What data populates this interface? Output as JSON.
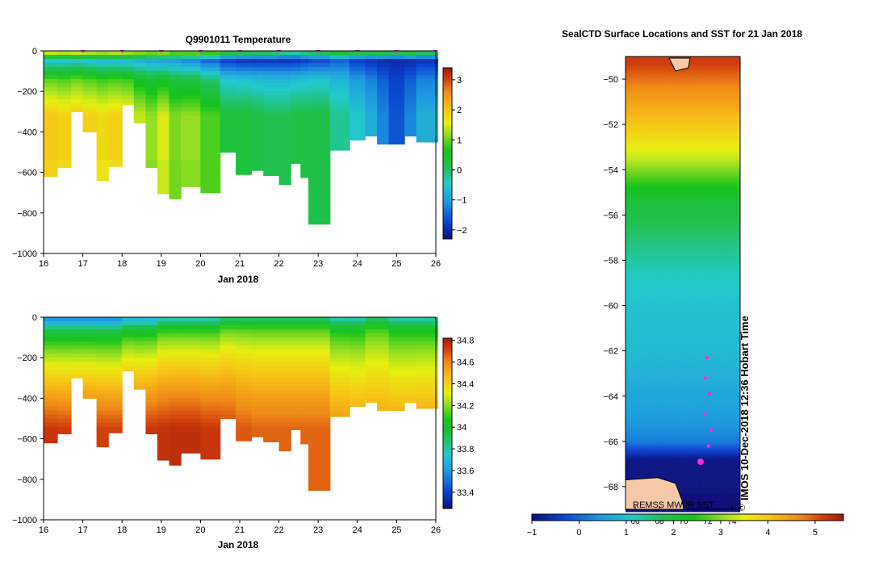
{
  "chart_data": [
    {
      "type": "heatmap",
      "title": "Q9901011  Temperature",
      "xlabel": "Jan 2018",
      "ylabel": "",
      "xlim": [
        16,
        26
      ],
      "ylim": [
        -1000,
        0
      ],
      "x_ticks": [
        "16",
        "17",
        "18",
        "19",
        "20",
        "21",
        "22",
        "23",
        "24",
        "25",
        "26"
      ],
      "y_ticks": [
        "0",
        "−200",
        "−400",
        "−600",
        "−800",
        "−1000"
      ],
      "colorbar": {
        "min": -2.3,
        "max": 3.4,
        "ticks": [
          "3",
          "2",
          "1",
          "0",
          "−1",
          "−2"
        ]
      },
      "profile_days": [
        16.0,
        16.35,
        16.7,
        17.0,
        17.35,
        17.65,
        18.0,
        18.3,
        18.6,
        18.9,
        19.2,
        19.5,
        20.0,
        20.5,
        20.9,
        21.3,
        21.6,
        22.0,
        22.3,
        22.55,
        22.75,
        23.3,
        23.8,
        24.2,
        24.5,
        24.8,
        25.2,
        25.5,
        26.05
      ],
      "profile_max_depth_m": [
        620,
        575,
        300,
        400,
        640,
        570,
        265,
        355,
        575,
        705,
        730,
        670,
        700,
        500,
        610,
        590,
        615,
        660,
        555,
        625,
        855,
        490,
        440,
        420,
        460,
        460,
        420,
        450,
        450
      ],
      "surface_temp_c": [
        1.4,
        1.3,
        1.4,
        1.3,
        1.2,
        1.3,
        1.2,
        1.1,
        1.0,
        1.1,
        0.9,
        0.9,
        0.8,
        0.2,
        0.1,
        0.0,
        0.0,
        -0.2,
        -0.3,
        -0.1,
        0.0,
        0.4,
        0.2,
        0.1,
        0.2,
        0.1,
        0.3,
        0.0,
        0.1
      ],
      "deep_temp_c": [
        2.0,
        1.9,
        2.0,
        1.9,
        1.8,
        1.9,
        1.8,
        1.4,
        1.2,
        1.5,
        1.1,
        1.2,
        0.9,
        0.3,
        0.3,
        0.2,
        0.1,
        0.1,
        0.2,
        0.2,
        0.2,
        -0.2,
        -0.5,
        -0.8,
        -1.2,
        -1.6,
        -1.2,
        -0.8,
        -0.5
      ],
      "min_temp_c": [
        -0.6,
        -0.6,
        -0.5,
        -0.6,
        -0.7,
        -0.7,
        -0.7,
        -0.8,
        -0.9,
        -1.0,
        -1.0,
        -1.2,
        -1.5,
        -1.8,
        -1.9,
        -1.9,
        -1.9,
        -1.9,
        -1.9,
        -1.8,
        -1.7,
        -1.5,
        -1.8,
        -1.9,
        -2.0,
        -2.0,
        -2.0,
        -1.9,
        -1.8
      ],
      "color_scale": [
        "#0b0f7a",
        "#0a44d0",
        "#1e9ae0",
        "#22c9cc",
        "#20c050",
        "#17c31a",
        "#9de021",
        "#e6ef10",
        "#f7c517",
        "#f08a18",
        "#cf3a0c",
        "#9e1b0a"
      ]
    },
    {
      "type": "heatmap",
      "title": "",
      "xlabel": "Jan 2018",
      "ylabel": "",
      "xlim": [
        16,
        26
      ],
      "ylim": [
        -1000,
        0
      ],
      "x_ticks": [
        "16",
        "17",
        "18",
        "19",
        "20",
        "21",
        "22",
        "23",
        "24",
        "25",
        "26"
      ],
      "y_ticks": [
        "0",
        "−200",
        "−400",
        "−600",
        "−800",
        "−1000"
      ],
      "colorbar": {
        "min": 33.25,
        "max": 34.82,
        "ticks": [
          "34.8",
          "34.6",
          "34.4",
          "34.2",
          "34",
          "33.8",
          "33.6",
          "33.4"
        ]
      },
      "profile_days": [
        16.0,
        16.35,
        16.7,
        17.0,
        17.35,
        17.65,
        18.0,
        18.3,
        18.6,
        18.9,
        19.2,
        19.5,
        20.0,
        20.5,
        20.9,
        21.3,
        21.6,
        22.0,
        22.3,
        22.55,
        22.75,
        23.3,
        23.8,
        24.2,
        24.5,
        24.8,
        25.2,
        25.5,
        26.05
      ],
      "profile_max_depth_m": [
        620,
        575,
        300,
        400,
        640,
        570,
        265,
        355,
        575,
        705,
        730,
        670,
        700,
        500,
        610,
        590,
        615,
        660,
        555,
        625,
        855,
        490,
        440,
        420,
        460,
        460,
        420,
        450,
        450
      ],
      "surface_salinity": [
        33.7,
        33.7,
        33.7,
        33.7,
        33.7,
        33.7,
        33.8,
        33.8,
        33.8,
        33.9,
        33.9,
        33.9,
        33.9,
        34.0,
        34.0,
        34.0,
        34.0,
        34.0,
        34.0,
        34.0,
        34.0,
        33.9,
        33.9,
        34.0,
        34.0,
        33.9,
        33.9,
        33.9,
        33.9
      ],
      "deep_salinity": [
        34.74,
        34.73,
        34.74,
        34.74,
        34.72,
        34.72,
        34.75,
        34.73,
        34.74,
        34.75,
        34.76,
        34.76,
        34.74,
        34.72,
        34.68,
        34.66,
        34.66,
        34.66,
        34.66,
        34.66,
        34.66,
        34.58,
        34.56,
        34.55,
        34.55,
        34.55,
        34.55,
        34.56,
        34.56
      ]
    },
    {
      "type": "heatmap",
      "title": "SealCTD Surface Locations and SST for 21 Jan 2018",
      "xlabel": "",
      "ylabel": "",
      "ylim": [
        -69,
        -49
      ],
      "y_ticks": [
        "−50",
        "−52",
        "−54",
        "−56",
        "−58",
        "−60",
        "−62",
        "−64",
        "−66",
        "−68"
      ],
      "longitude_ticks": [
        "66",
        "68",
        "70",
        "72",
        "74"
      ],
      "colorbar": {
        "min": -1,
        "max": 5.6,
        "ticks": [
          "−1",
          "0",
          "1",
          "2",
          "3",
          "4",
          "5"
        ]
      },
      "sst_by_latitude": [
        [
          -49.3,
          5.2
        ],
        [
          -50.5,
          4.6
        ],
        [
          -52.0,
          4.0
        ],
        [
          -53.5,
          3.3
        ],
        [
          -54.5,
          2.6
        ],
        [
          -55.5,
          2.0
        ],
        [
          -57.0,
          1.6
        ],
        [
          -58.5,
          1.2
        ],
        [
          -60.0,
          1.0
        ],
        [
          -62.0,
          0.9
        ],
        [
          -63.5,
          0.7
        ],
        [
          -65.0,
          0.5
        ],
        [
          -66.0,
          0.2
        ],
        [
          -66.8,
          -0.9
        ],
        [
          -69.0,
          -1.0
        ]
      ],
      "track_points": [
        [
          -62.3,
          0.0
        ],
        [
          -63.2,
          0.0
        ],
        [
          -63.9,
          0.0
        ],
        [
          -64.8,
          0.0
        ],
        [
          -65.5,
          0.0
        ],
        [
          -66.2,
          0.0
        ],
        [
          -66.9,
          0.0
        ]
      ],
      "source_label": "REMSS MW-IR SST",
      "side_label": "IMOS 10-Dec-2018 12:36 Hobart Time",
      "copyright": "©"
    }
  ]
}
